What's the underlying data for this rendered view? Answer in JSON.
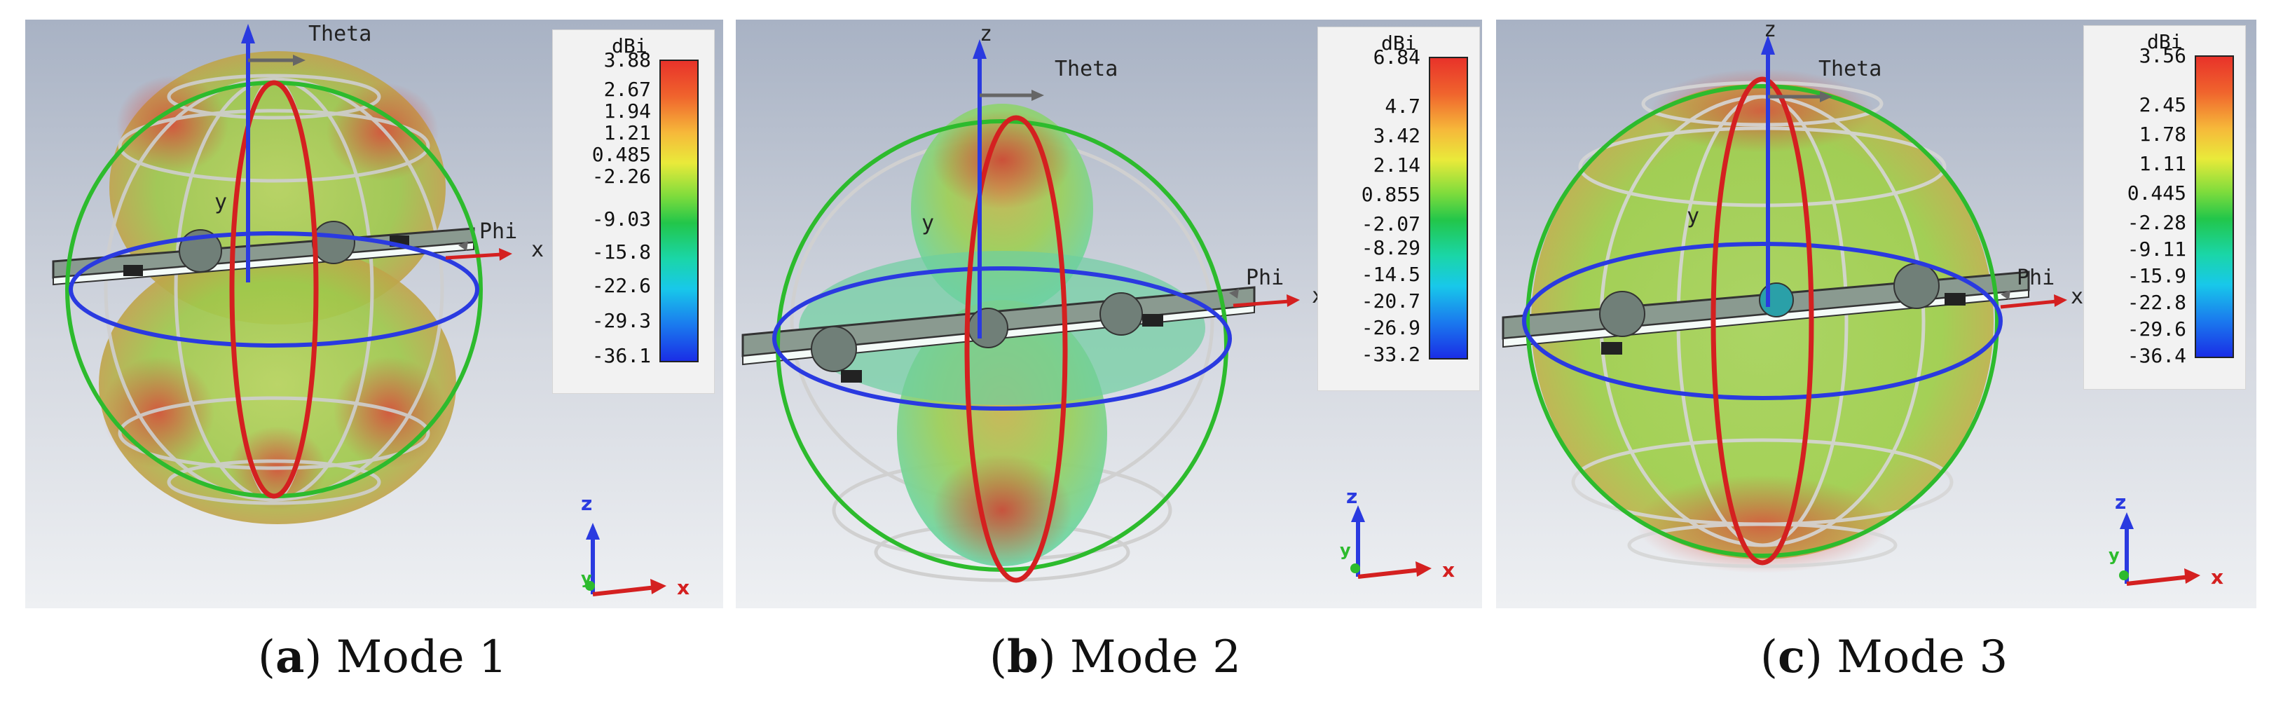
{
  "panels": [
    {
      "id": "a",
      "caption_letter": "a",
      "caption_text": "Mode 1",
      "colorbar": {
        "unit": "dBi",
        "ticks": [
          "3.88",
          "2.67",
          "1.94",
          "1.21",
          "0.485",
          "-2.26",
          "-9.03",
          "-15.8",
          "-22.6",
          "-29.3",
          "-36.1"
        ]
      },
      "labels": {
        "theta": "Theta",
        "phi": "Phi",
        "y": "y",
        "x": "x"
      },
      "triad": {
        "z": "z",
        "x": "x",
        "y": "y"
      }
    },
    {
      "id": "b",
      "caption_letter": "b",
      "caption_text": "Mode 2",
      "colorbar": {
        "unit": "dBi",
        "ticks": [
          "6.84",
          "4.7",
          "3.42",
          "2.14",
          "0.855",
          "-2.07",
          "-8.29",
          "-14.5",
          "-20.7",
          "-26.9",
          "-33.2"
        ]
      },
      "labels": {
        "z": "z",
        "theta": "Theta",
        "phi": "Phi",
        "y": "y",
        "x": "x"
      },
      "triad": {
        "z": "z",
        "x": "x",
        "y": "y"
      }
    },
    {
      "id": "c",
      "caption_letter": "c",
      "caption_text": "Mode 3",
      "colorbar": {
        "unit": "dBi",
        "ticks": [
          "3.56",
          "2.45",
          "1.78",
          "1.11",
          "0.445",
          "-2.28",
          "-9.11",
          "-15.9",
          "-22.8",
          "-29.6",
          "-36.4"
        ]
      },
      "labels": {
        "z": "z",
        "theta": "Theta",
        "phi": "Phi",
        "y": "y",
        "x": "x"
      },
      "triad": {
        "z": "z",
        "x": "x",
        "y": "y"
      }
    }
  ]
}
